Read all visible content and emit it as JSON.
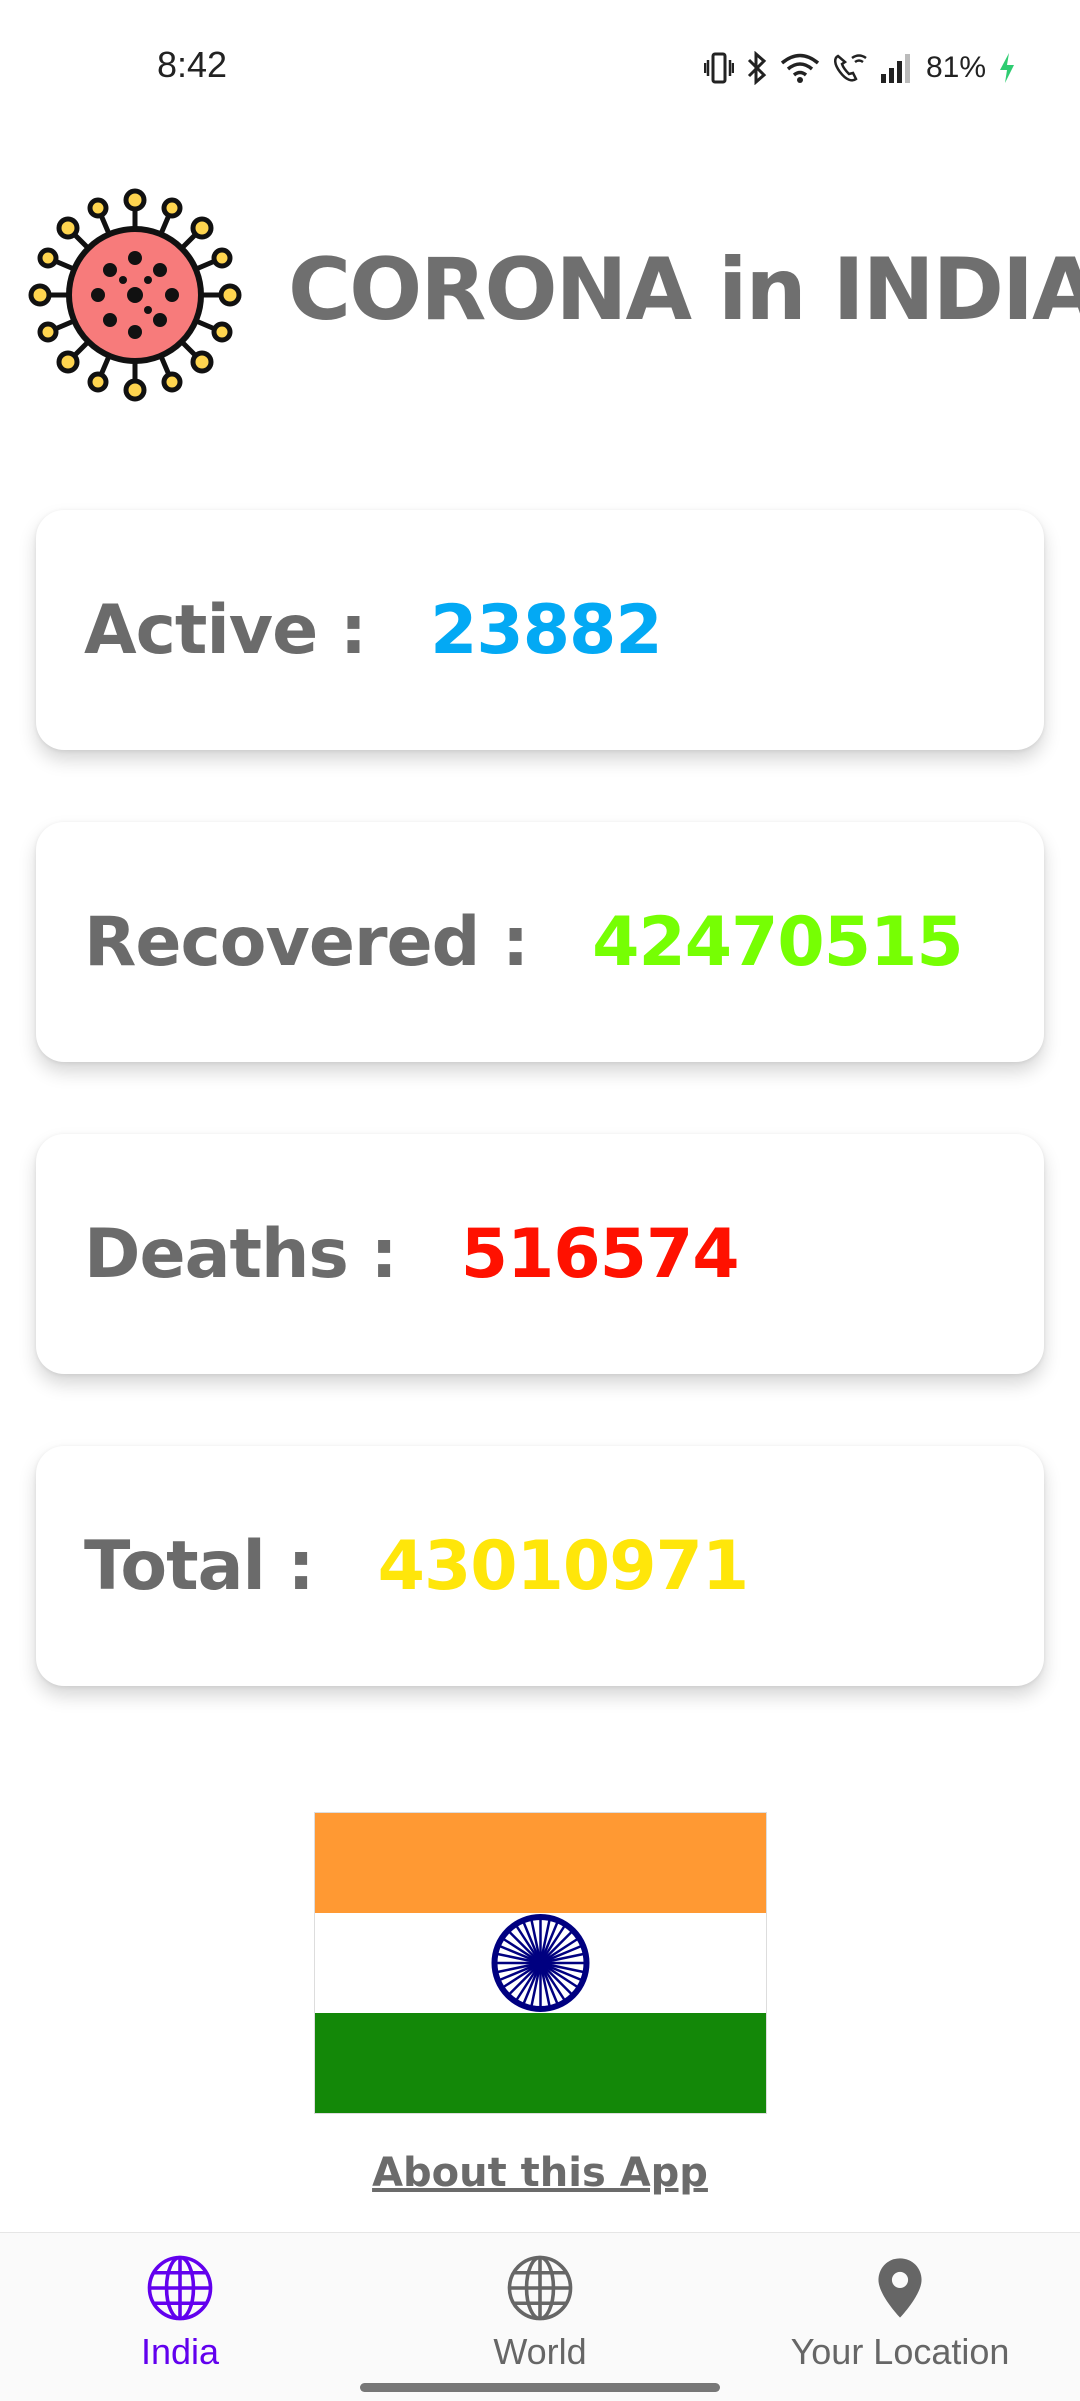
{
  "status_bar": {
    "time": "8:42",
    "battery": "81%",
    "icons": [
      "vibrate-icon",
      "bluetooth-icon",
      "wifi-icon",
      "wifi-calling-icon",
      "signal-icon",
      "battery-charging-icon"
    ]
  },
  "header": {
    "title": "CORONA in INDIA",
    "logo_icon": "virus-icon"
  },
  "stats": [
    {
      "label": "Active :",
      "value": "23882",
      "color": "#03A9F4"
    },
    {
      "label": "Recovered :",
      "value": "42470515",
      "color": "#76FF03"
    },
    {
      "label": "Deaths :",
      "value": "516574",
      "color": "#FF1100"
    },
    {
      "label": "Total :",
      "value": "43010971",
      "color": "#FFE60A"
    }
  ],
  "flag": {
    "icon": "india-flag-icon",
    "colors": [
      "#FF9933",
      "#FFFFFF",
      "#138808",
      "#000080"
    ]
  },
  "about_link": "About this App",
  "bottom_nav": {
    "items": [
      {
        "label": "India",
        "icon": "globe-icon",
        "active": true
      },
      {
        "label": "World",
        "icon": "globe-icon",
        "active": false
      },
      {
        "label": "Your Location",
        "icon": "location-pin-icon",
        "active": false
      }
    ],
    "active_color": "#6200EE",
    "inactive_color": "#666666"
  }
}
